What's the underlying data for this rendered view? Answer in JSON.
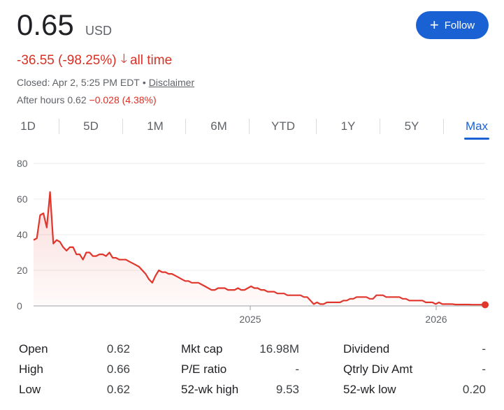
{
  "header": {
    "price": "0.65",
    "currency": "USD",
    "change": "-36.55 (-98.25%)",
    "period": "all time",
    "closed": "Closed: Apr 2, 5:25 PM EDT",
    "separator": "•",
    "disclaimer": "Disclaimer",
    "after_hours_label": "After hours 0.62",
    "after_hours_change": "−0.028 (4.38%)",
    "follow_label": "Follow"
  },
  "tabs": [
    {
      "label": "1D"
    },
    {
      "label": "5D"
    },
    {
      "label": "1M"
    },
    {
      "label": "6M"
    },
    {
      "label": "YTD"
    },
    {
      "label": "1Y"
    },
    {
      "label": "5Y"
    },
    {
      "label": "Max",
      "active": true
    }
  ],
  "chart_data": {
    "type": "line",
    "y_ticks": [
      "80",
      "60",
      "40",
      "20",
      "0"
    ],
    "x_ticks": [
      "2025",
      "2026"
    ],
    "ylim": [
      0,
      80
    ],
    "grid": true,
    "line_color": "#e0362c",
    "series": [
      {
        "values": [
          37,
          38,
          51,
          52,
          44,
          64,
          35,
          37,
          36,
          33,
          31,
          33,
          33,
          29,
          29,
          26,
          30,
          30,
          28,
          28,
          29,
          29,
          28,
          30,
          27,
          27,
          26,
          26,
          26,
          25,
          24,
          23,
          22,
          20,
          18,
          15,
          13,
          17,
          20,
          19,
          19,
          18,
          18,
          17,
          16,
          15,
          14,
          14,
          13,
          13,
          13,
          12,
          11,
          10,
          9,
          9,
          10,
          10,
          10,
          9,
          9,
          9,
          10,
          9,
          9,
          10,
          11,
          10,
          10,
          9,
          9,
          8,
          8,
          8,
          7,
          7,
          7,
          6,
          6,
          6,
          6,
          6,
          5,
          5,
          3,
          1,
          2,
          1,
          1,
          2,
          2,
          2,
          2,
          2,
          3,
          3,
          4,
          4,
          5,
          5,
          5,
          5,
          4,
          4,
          6,
          6,
          6,
          5,
          5,
          5,
          5,
          5,
          4,
          4,
          3,
          3,
          3,
          3,
          3,
          2,
          2,
          2,
          1,
          2,
          1,
          1,
          1,
          1,
          0.8,
          0.8,
          0.8,
          0.8,
          0.8,
          0.7,
          0.7,
          0.7,
          0.7,
          0.65
        ]
      }
    ]
  },
  "stats": [
    {
      "label": "Open",
      "value": "0.62"
    },
    {
      "label": "High",
      "value": "0.66"
    },
    {
      "label": "Low",
      "value": "0.62"
    },
    {
      "label": "Mkt cap",
      "value": "16.98M"
    },
    {
      "label": "P/E ratio",
      "value": "-"
    },
    {
      "label": "52-wk high",
      "value": "9.53"
    },
    {
      "label": "Dividend",
      "value": "-"
    },
    {
      "label": "Qtrly Div Amt",
      "value": "-"
    },
    {
      "label": "52-wk low",
      "value": "0.20"
    }
  ]
}
